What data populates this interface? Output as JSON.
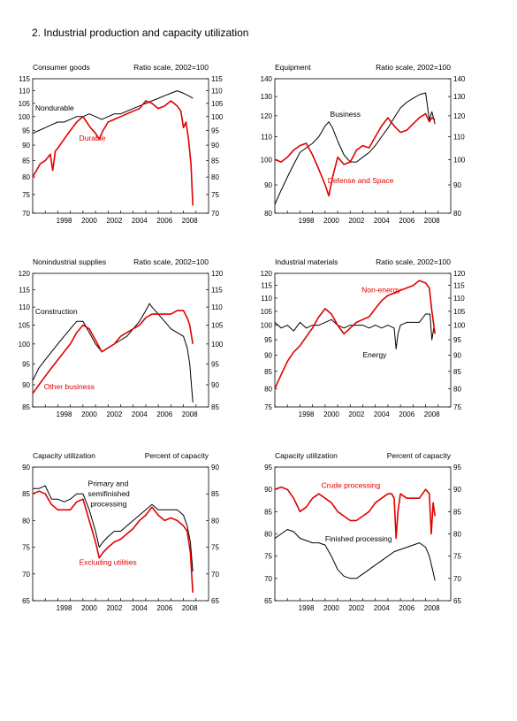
{
  "page": {
    "title": "2.  Industrial production and capacity utilization"
  },
  "colors": {
    "black": "#000000",
    "red": "#e00000"
  },
  "x_ticks": [
    "1998",
    "2000",
    "2002",
    "2004",
    "2006",
    "2008"
  ],
  "chart_data": [
    {
      "type": "line",
      "title": "Consumer goods",
      "unit_label": "Ratio scale, 2002=100",
      "xlim": [
        1996.0,
        2010.0
      ],
      "ylim": [
        70,
        115
      ],
      "yticks": [
        70,
        75,
        80,
        85,
        90,
        95,
        100,
        105,
        110,
        115
      ],
      "log_scale": true,
      "series": [
        {
          "name": "Nondurable",
          "color": "#000000",
          "x": [
            1996.0,
            1996.5,
            1997.0,
            1997.5,
            1998.0,
            1998.5,
            1999.0,
            1999.5,
            2000.0,
            2000.5,
            2001.0,
            2001.5,
            2002.0,
            2002.5,
            2003.0,
            2003.5,
            2004.0,
            2004.5,
            2005.0,
            2005.5,
            2006.0,
            2006.5,
            2007.0,
            2007.5,
            2008.0,
            2008.4,
            2008.75
          ],
          "y": [
            94,
            95,
            96,
            97,
            98,
            98,
            99,
            100,
            100,
            101,
            100,
            99,
            100,
            101,
            101,
            102,
            103,
            104,
            105,
            106,
            107,
            108,
            109,
            110,
            109,
            108,
            107
          ]
        },
        {
          "name": "Durable",
          "color": "#e00000",
          "x": [
            1996.0,
            1996.3,
            1996.6,
            1997.0,
            1997.4,
            1997.6,
            1997.8,
            1998.0,
            1998.5,
            1999.0,
            1999.5,
            2000.0,
            2000.3,
            2000.6,
            2001.0,
            2001.3,
            2001.6,
            2002.0,
            2002.5,
            2003.0,
            2003.5,
            2004.0,
            2004.5,
            2005.0,
            2005.5,
            2006.0,
            2006.5,
            2007.0,
            2007.5,
            2007.8,
            2008.0,
            2008.2,
            2008.4,
            2008.6,
            2008.75
          ],
          "y": [
            80,
            82,
            84,
            85,
            87,
            82,
            88,
            89,
            92,
            95,
            98,
            100,
            98,
            96,
            94,
            92,
            95,
            98,
            99,
            100,
            101,
            102,
            103,
            106,
            105,
            103,
            104,
            106,
            104,
            102,
            96,
            98,
            92,
            84,
            72
          ]
        }
      ],
      "labels": [
        {
          "text": "Nondurable",
          "x": 1996.2,
          "y": 102.3,
          "color": "#000000"
        },
        {
          "text": "Durable",
          "x": 1999.7,
          "y": 91.5,
          "color": "#e00000"
        }
      ]
    },
    {
      "type": "line",
      "title": "Equipment",
      "unit_label": "Ratio scale, 2002=100",
      "xlim": [
        1996.0,
        2010.0
      ],
      "ylim": [
        80,
        140
      ],
      "yticks": [
        80,
        90,
        100,
        110,
        120,
        130,
        140
      ],
      "log_scale": true,
      "series": [
        {
          "name": "Business",
          "color": "#000000",
          "x": [
            1996.0,
            1996.5,
            1997.0,
            1997.5,
            1998.0,
            1998.5,
            1999.0,
            1999.5,
            2000.0,
            2000.3,
            2000.6,
            2001.0,
            2001.5,
            2002.0,
            2002.5,
            2003.0,
            2003.5,
            2004.0,
            2004.5,
            2005.0,
            2005.5,
            2006.0,
            2006.5,
            2007.0,
            2007.5,
            2008.0,
            2008.3,
            2008.5,
            2008.75
          ],
          "y": [
            83,
            88,
            93,
            98,
            103,
            105,
            107,
            110,
            115,
            117,
            114,
            108,
            102,
            99,
            99,
            101,
            103,
            106,
            110,
            114,
            119,
            124,
            127,
            129,
            131,
            132,
            118,
            122,
            116
          ]
        },
        {
          "name": "Defense and Space",
          "color": "#e00000",
          "x": [
            1996.0,
            1996.5,
            1997.0,
            1997.5,
            1998.0,
            1998.5,
            1999.0,
            1999.5,
            2000.0,
            2000.3,
            2000.6,
            2001.0,
            2001.5,
            2002.0,
            2002.5,
            2003.0,
            2003.5,
            2004.0,
            2004.5,
            2005.0,
            2005.5,
            2006.0,
            2006.5,
            2007.0,
            2007.5,
            2008.0,
            2008.3,
            2008.5,
            2008.75
          ],
          "y": [
            100,
            99,
            101,
            104,
            106,
            107,
            102,
            96,
            90,
            86,
            93,
            101,
            98,
            99,
            104,
            106,
            105,
            110,
            115,
            119,
            115,
            112,
            113,
            116,
            119,
            121,
            117,
            119,
            118
          ]
        }
      ],
      "labels": [
        {
          "text": "Business",
          "x": 2000.4,
          "y": 119.5,
          "color": "#000000"
        },
        {
          "text": "Defense and Space",
          "x": 2000.2,
          "y": 90.6,
          "color": "#e00000"
        }
      ]
    },
    {
      "type": "line",
      "title": "Nonindustrial supplies",
      "unit_label": "Ratio scale, 2002=100",
      "xlim": [
        1996.0,
        2010.0
      ],
      "ylim": [
        85,
        120
      ],
      "yticks": [
        85,
        90,
        95,
        100,
        105,
        110,
        115,
        120
      ],
      "log_scale": true,
      "series": [
        {
          "name": "Construction",
          "color": "#000000",
          "x": [
            1996.0,
            1996.5,
            1997.0,
            1997.5,
            1998.0,
            1998.5,
            1999.0,
            1999.5,
            2000.0,
            2000.5,
            2001.0,
            2001.5,
            2002.0,
            2002.5,
            2003.0,
            2003.5,
            2004.0,
            2004.5,
            2005.0,
            2005.3,
            2005.5,
            2006.0,
            2006.5,
            2007.0,
            2007.5,
            2008.0,
            2008.3,
            2008.5,
            2008.75
          ],
          "y": [
            91,
            94,
            96,
            98,
            100,
            102,
            104,
            106,
            106,
            103,
            100,
            98,
            99,
            100,
            101,
            102,
            104,
            106,
            109,
            111,
            110,
            108,
            106,
            104,
            103,
            102,
            99,
            95,
            86
          ]
        },
        {
          "name": "Other business",
          "color": "#e00000",
          "x": [
            1996.0,
            1996.5,
            1997.0,
            1997.5,
            1998.0,
            1998.5,
            1999.0,
            1999.5,
            2000.0,
            2000.5,
            2001.0,
            2001.5,
            2002.0,
            2002.5,
            2003.0,
            2003.5,
            2004.0,
            2004.5,
            2005.0,
            2005.5,
            2006.0,
            2006.5,
            2007.0,
            2007.5,
            2008.0,
            2008.3,
            2008.5,
            2008.75
          ],
          "y": [
            88,
            90,
            92,
            94,
            96,
            98,
            100,
            103,
            105,
            104,
            101,
            98,
            99,
            100,
            102,
            103,
            104,
            105,
            107,
            108,
            108,
            108,
            108,
            109,
            109,
            107,
            105,
            100
          ]
        }
      ],
      "labels": [
        {
          "text": "Construction",
          "x": 1996.2,
          "y": 108.0,
          "color": "#000000"
        },
        {
          "text": "Other business",
          "x": 1996.9,
          "y": 89.0,
          "color": "#e00000"
        }
      ]
    },
    {
      "type": "line",
      "title": "Industrial materials",
      "unit_label": "Ratio scale, 2002=100",
      "xlim": [
        1996.0,
        2010.0
      ],
      "ylim": [
        75,
        120
      ],
      "yticks": [
        75,
        80,
        85,
        90,
        95,
        100,
        105,
        110,
        115,
        120
      ],
      "log_scale": true,
      "series": [
        {
          "name": "Energy",
          "color": "#000000",
          "x": [
            1996.0,
            1996.5,
            1997.0,
            1997.5,
            1998.0,
            1998.5,
            1999.0,
            1999.5,
            2000.0,
            2000.5,
            2001.0,
            2001.5,
            2002.0,
            2002.5,
            2003.0,
            2003.5,
            2004.0,
            2004.5,
            2005.0,
            2005.5,
            2005.65,
            2005.8,
            2006.0,
            2006.5,
            2007.0,
            2007.5,
            2008.0,
            2008.35,
            2008.5,
            2008.65,
            2008.75
          ],
          "y": [
            101,
            99,
            100,
            98,
            101,
            99,
            100,
            100,
            101,
            102,
            100,
            99,
            100,
            100,
            100,
            99,
            100,
            99,
            100,
            99,
            92,
            97,
            100,
            101,
            101,
            101,
            104,
            104,
            95,
            99,
            98
          ]
        },
        {
          "name": "Non-energy",
          "color": "#e00000",
          "x": [
            1996.0,
            1996.5,
            1997.0,
            1997.5,
            1998.0,
            1998.5,
            1999.0,
            1999.5,
            2000.0,
            2000.5,
            2001.0,
            2001.5,
            2002.0,
            2002.5,
            2003.0,
            2003.5,
            2004.0,
            2004.5,
            2005.0,
            2005.5,
            2006.0,
            2006.5,
            2007.0,
            2007.5,
            2008.0,
            2008.3,
            2008.5,
            2008.75
          ],
          "y": [
            80,
            84,
            88,
            91,
            93,
            96,
            99,
            103,
            106,
            104,
            100,
            97,
            99,
            101,
            102,
            103,
            106,
            109,
            111,
            112,
            113,
            114,
            115,
            117,
            116,
            114,
            105,
            97
          ]
        }
      ],
      "labels": [
        {
          "text": "Non-energy",
          "x": 2002.9,
          "y": 112.3,
          "color": "#e00000"
        },
        {
          "text": "Energy",
          "x": 2003.0,
          "y": 89.3,
          "color": "#000000"
        }
      ]
    },
    {
      "type": "line",
      "title": "Capacity utilization",
      "unit_label": "Percent of capacity",
      "xlim": [
        1996.0,
        2010.0
      ],
      "ylim": [
        65,
        90
      ],
      "yticks": [
        65,
        70,
        75,
        80,
        85,
        90
      ],
      "log_scale": false,
      "series": [
        {
          "name": "Primary and semifinished processing",
          "color": "#000000",
          "x": [
            1996.0,
            1996.5,
            1997.0,
            1997.5,
            1998.0,
            1998.5,
            1999.0,
            1999.5,
            2000.0,
            2000.5,
            2001.0,
            2001.3,
            2001.6,
            2002.0,
            2002.5,
            2003.0,
            2003.5,
            2004.0,
            2004.5,
            2005.0,
            2005.5,
            2006.0,
            2006.5,
            2007.0,
            2007.5,
            2008.0,
            2008.3,
            2008.55,
            2008.75
          ],
          "y": [
            86,
            86,
            86.5,
            84,
            84,
            83.5,
            84,
            85,
            85,
            82,
            78,
            75,
            76,
            77,
            78,
            78,
            79,
            80,
            81,
            82,
            83,
            82,
            82,
            82,
            82,
            81,
            79,
            76,
            70.5
          ]
        },
        {
          "name": "Excluding utilities",
          "color": "#e00000",
          "x": [
            1996.0,
            1996.5,
            1997.0,
            1997.5,
            1998.0,
            1998.5,
            1999.0,
            1999.5,
            2000.0,
            2000.5,
            2001.0,
            2001.3,
            2001.6,
            2002.0,
            2002.5,
            2003.0,
            2003.5,
            2004.0,
            2004.5,
            2005.0,
            2005.5,
            2006.0,
            2006.5,
            2007.0,
            2007.5,
            2008.0,
            2008.3,
            2008.55,
            2008.75
          ],
          "y": [
            85,
            85.5,
            85,
            83,
            82,
            82,
            82,
            83.5,
            84,
            80,
            76,
            73,
            74,
            75,
            76,
            76.5,
            77.5,
            78.5,
            80,
            81,
            82.5,
            81,
            80,
            80.5,
            80,
            79,
            78,
            74,
            66.5
          ]
        }
      ],
      "labels": [
        {
          "text": "Primary and",
          "x": 2000.4,
          "y": 86.4,
          "color": "#000000"
        },
        {
          "text": "semifinished",
          "x": 2000.4,
          "y": 84.5,
          "color": "#000000"
        },
        {
          "text": "processing",
          "x": 2000.6,
          "y": 82.6,
          "color": "#000000"
        },
        {
          "text": "Excluding utilities",
          "x": 1999.7,
          "y": 71.7,
          "color": "#e00000"
        }
      ]
    },
    {
      "type": "line",
      "title": "Capacity utilization",
      "unit_label": "Percent of capacity",
      "xlim": [
        1996.0,
        2010.0
      ],
      "ylim": [
        65,
        95
      ],
      "yticks": [
        65,
        70,
        75,
        80,
        85,
        90,
        95
      ],
      "log_scale": false,
      "series": [
        {
          "name": "Crude processing",
          "color": "#e00000",
          "x": [
            1996.0,
            1996.5,
            1997.0,
            1997.5,
            1998.0,
            1998.5,
            1999.0,
            1999.5,
            2000.0,
            2000.5,
            2001.0,
            2001.5,
            2002.0,
            2002.5,
            2003.0,
            2003.5,
            2004.0,
            2004.5,
            2005.0,
            2005.3,
            2005.5,
            2005.65,
            2005.8,
            2006.0,
            2006.5,
            2007.0,
            2007.5,
            2008.0,
            2008.3,
            2008.45,
            2008.6,
            2008.75
          ],
          "y": [
            90,
            90.5,
            90,
            88,
            85,
            86,
            88,
            89,
            88,
            87,
            85,
            84,
            83,
            83,
            84,
            85,
            87,
            88,
            89,
            89,
            88,
            79,
            85,
            89,
            88,
            88,
            88,
            90,
            89,
            80,
            87,
            84
          ]
        },
        {
          "name": "Finished processing",
          "color": "#000000",
          "x": [
            1996.0,
            1996.5,
            1997.0,
            1997.5,
            1998.0,
            1998.5,
            1999.0,
            1999.5,
            2000.0,
            2000.5,
            2001.0,
            2001.5,
            2002.0,
            2002.5,
            2003.0,
            2003.5,
            2004.0,
            2004.5,
            2005.0,
            2005.5,
            2006.0,
            2006.5,
            2007.0,
            2007.5,
            2008.0,
            2008.3,
            2008.55,
            2008.75
          ],
          "y": [
            79,
            80,
            81,
            80.5,
            79,
            78.5,
            78,
            78,
            77.5,
            75,
            72,
            70.5,
            70,
            70,
            71,
            72,
            73,
            74,
            75,
            76,
            76.5,
            77,
            77.5,
            78,
            77,
            75,
            72,
            69.5
          ]
        }
      ],
      "labels": [
        {
          "text": "Crude processing",
          "x": 1999.7,
          "y": 90.3,
          "color": "#e00000"
        },
        {
          "text": "Finished processing",
          "x": 2000.0,
          "y": 78.3,
          "color": "#000000"
        }
      ]
    }
  ]
}
